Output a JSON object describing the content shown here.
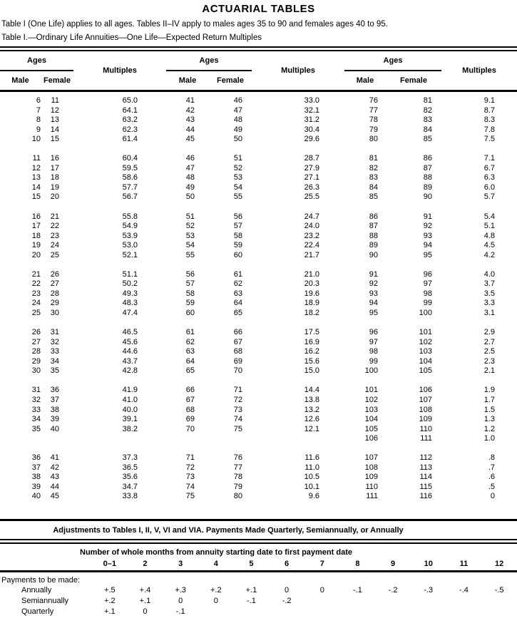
{
  "title": "ACTUARIAL TABLES",
  "intro": "Table I (One Life) applies to all ages. Tables II–IV apply to males ages 35 to 90 and females ages 40 to 95.",
  "main_table": {
    "caption": "Table I.—Ordinary Life Annuities—One Life—Expected Return Multiples",
    "headers": {
      "ages": "Ages",
      "male": "Male",
      "female": "Female",
      "multiples": "Multiples"
    },
    "blocks": [
      [
        [
          "6",
          "11",
          "65.0",
          "41",
          "46",
          "33.0",
          "76",
          "81",
          "9.1"
        ],
        [
          "7",
          "12",
          "64.1",
          "42",
          "47",
          "32.1",
          "77",
          "82",
          "8.7"
        ],
        [
          "8",
          "13",
          "63.2",
          "43",
          "48",
          "31.2",
          "78",
          "83",
          "8.3"
        ],
        [
          "9",
          "14",
          "62.3",
          "44",
          "49",
          "30.4",
          "79",
          "84",
          "7.8"
        ],
        [
          "10",
          "15",
          "61.4",
          "45",
          "50",
          "29.6",
          "80",
          "85",
          "7.5"
        ]
      ],
      [
        [
          "11",
          "16",
          "60.4",
          "46",
          "51",
          "28.7",
          "81",
          "86",
          "7.1"
        ],
        [
          "12",
          "17",
          "59.5",
          "47",
          "52",
          "27.9",
          "82",
          "87",
          "6.7"
        ],
        [
          "13",
          "18",
          "58.6",
          "48",
          "53",
          "27.1",
          "83",
          "88",
          "6.3"
        ],
        [
          "14",
          "19",
          "57.7",
          "49",
          "54",
          "26.3",
          "84",
          "89",
          "6.0"
        ],
        [
          "15",
          "20",
          "56.7",
          "50",
          "55",
          "25.5",
          "85",
          "90",
          "5.7"
        ]
      ],
      [
        [
          "16",
          "21",
          "55.8",
          "51",
          "56",
          "24.7",
          "86",
          "91",
          "5.4"
        ],
        [
          "17",
          "22",
          "54.9",
          "52",
          "57",
          "24.0",
          "87",
          "92",
          "5.1"
        ],
        [
          "18",
          "23",
          "53.9",
          "53",
          "58",
          "23.2",
          "88",
          "93",
          "4.8"
        ],
        [
          "19",
          "24",
          "53.0",
          "54",
          "59",
          "22.4",
          "89",
          "94",
          "4.5"
        ],
        [
          "20",
          "25",
          "52.1",
          "55",
          "60",
          "21.7",
          "90",
          "95",
          "4.2"
        ]
      ],
      [
        [
          "21",
          "26",
          "51.1",
          "56",
          "61",
          "21.0",
          "91",
          "96",
          "4.0"
        ],
        [
          "22",
          "27",
          "50.2",
          "57",
          "62",
          "20.3",
          "92",
          "97",
          "3.7"
        ],
        [
          "23",
          "28",
          "49.3",
          "58",
          "63",
          "19.6",
          "93",
          "98",
          "3.5"
        ],
        [
          "24",
          "29",
          "48.3",
          "59",
          "64",
          "18.9",
          "94",
          "99",
          "3.3"
        ],
        [
          "25",
          "30",
          "47.4",
          "60",
          "65",
          "18.2",
          "95",
          "100",
          "3.1"
        ]
      ],
      [
        [
          "26",
          "31",
          "46.5",
          "61",
          "66",
          "17.5",
          "96",
          "101",
          "2.9"
        ],
        [
          "27",
          "32",
          "45.6",
          "62",
          "67",
          "16.9",
          "97",
          "102",
          "2.7"
        ],
        [
          "28",
          "33",
          "44.6",
          "63",
          "68",
          "16.2",
          "98",
          "103",
          "2.5"
        ],
        [
          "29",
          "34",
          "43.7",
          "64",
          "69",
          "15.6",
          "99",
          "104",
          "2.3"
        ],
        [
          "30",
          "35",
          "42.8",
          "65",
          "70",
          "15.0",
          "100",
          "105",
          "2.1"
        ]
      ],
      [
        [
          "31",
          "36",
          "41.9",
          "66",
          "71",
          "14.4",
          "101",
          "106",
          "1.9"
        ],
        [
          "32",
          "37",
          "41.0",
          "67",
          "72",
          "13.8",
          "102",
          "107",
          "1.7"
        ],
        [
          "33",
          "38",
          "40.0",
          "68",
          "73",
          "13.2",
          "103",
          "108",
          "1.5"
        ],
        [
          "34",
          "39",
          "39.1",
          "69",
          "74",
          "12.6",
          "104",
          "109",
          "1.3"
        ],
        [
          "35",
          "40",
          "38.2",
          "70",
          "75",
          "12.1",
          "105",
          "110",
          "1.2"
        ],
        [
          "",
          "",
          "",
          "",
          "",
          "",
          "106",
          "111",
          "1.0"
        ]
      ],
      [
        [
          "36",
          "41",
          "37.3",
          "71",
          "76",
          "11.6",
          "107",
          "112",
          ".8"
        ],
        [
          "37",
          "42",
          "36.5",
          "72",
          "77",
          "11.0",
          "108",
          "113",
          ".7"
        ],
        [
          "38",
          "43",
          "35.6",
          "73",
          "78",
          "10.5",
          "109",
          "114",
          ".6"
        ],
        [
          "39",
          "44",
          "34.7",
          "74",
          "79",
          "10.1",
          "110",
          "115",
          ".5"
        ],
        [
          "40",
          "45",
          "33.8",
          "75",
          "80",
          "9.6",
          "111",
          "116",
          "0"
        ]
      ]
    ]
  },
  "adjustments": {
    "title": "Adjustments to Tables I, II, V, VI and VIA. Payments Made Quarterly, Semiannually, or Annually",
    "months_header": "Number of whole months from annuity starting date to first payment date",
    "month_cols": [
      "0–1",
      "2",
      "3",
      "4",
      "5",
      "6",
      "7",
      "8",
      "9",
      "10",
      "11",
      "12"
    ],
    "group_label": "Payments to be made:",
    "rows": [
      {
        "label": "Annually",
        "values": [
          "+.5",
          "+.4",
          "+.3",
          "+.2",
          "+.1",
          "0",
          "0",
          "-.1",
          "-.2",
          "-.3",
          "-.4",
          "-.5"
        ]
      },
      {
        "label": "Semiannually",
        "values": [
          "+.2",
          "+.1",
          "0",
          "0",
          "-.1",
          "-.2",
          "",
          "",
          "",
          "",
          "",
          ""
        ]
      },
      {
        "label": "Quarterly",
        "values": [
          "+.1",
          "0",
          "-.1",
          "",
          "",
          "",
          "",
          "",
          "",
          "",
          "",
          ""
        ]
      }
    ]
  }
}
